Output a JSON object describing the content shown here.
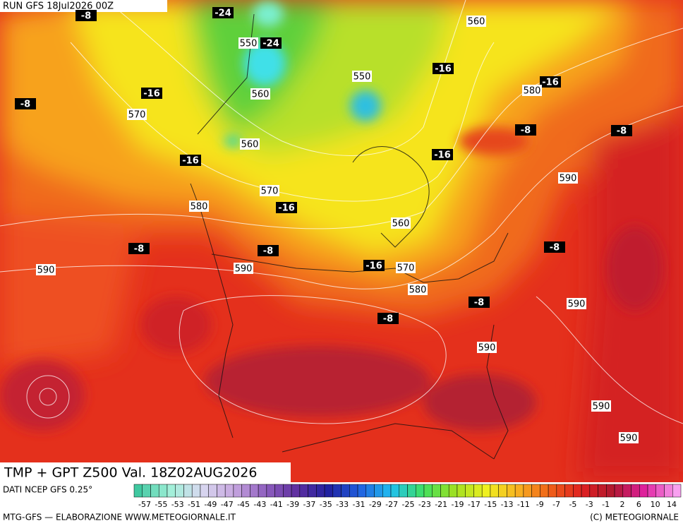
{
  "header": {
    "run": "RUN GFS 18Jul2026 00Z"
  },
  "temperature_labels": [
    "-8",
    "-24",
    "-24",
    "-8",
    "-16",
    "-16",
    "-16",
    "-8",
    "-8",
    "-16",
    "-16",
    "-16",
    "-8",
    "-8",
    "-8",
    "-16",
    "-8",
    "-8"
  ],
  "height_labels": [
    "560",
    "550",
    "550",
    "580",
    "560",
    "570",
    "560",
    "590",
    "570",
    "580",
    "560",
    "590",
    "590",
    "570",
    "580",
    "590",
    "590",
    "590",
    "590"
  ],
  "title": "TMP + GPT Z500 Val. 18Z02AUG2026",
  "colorbar": {
    "source": "DATI NCEP GFS 0.25°",
    "labels": [
      -57,
      -55,
      -53,
      -51,
      -49,
      -47,
      -45,
      -43,
      -41,
      -39,
      -37,
      -35,
      -33,
      -31,
      -29,
      -27,
      -25,
      -23,
      -21,
      -19,
      -17,
      -15,
      -13,
      -11,
      -9,
      -7,
      -5,
      -3,
      -1,
      2,
      6,
      10,
      14
    ]
  },
  "footer": {
    "left": "MTG-GFS — ELABORAZIONE WWW.METEOGIORNALE.IT",
    "right": "(C) METEOGIORNALE"
  }
}
